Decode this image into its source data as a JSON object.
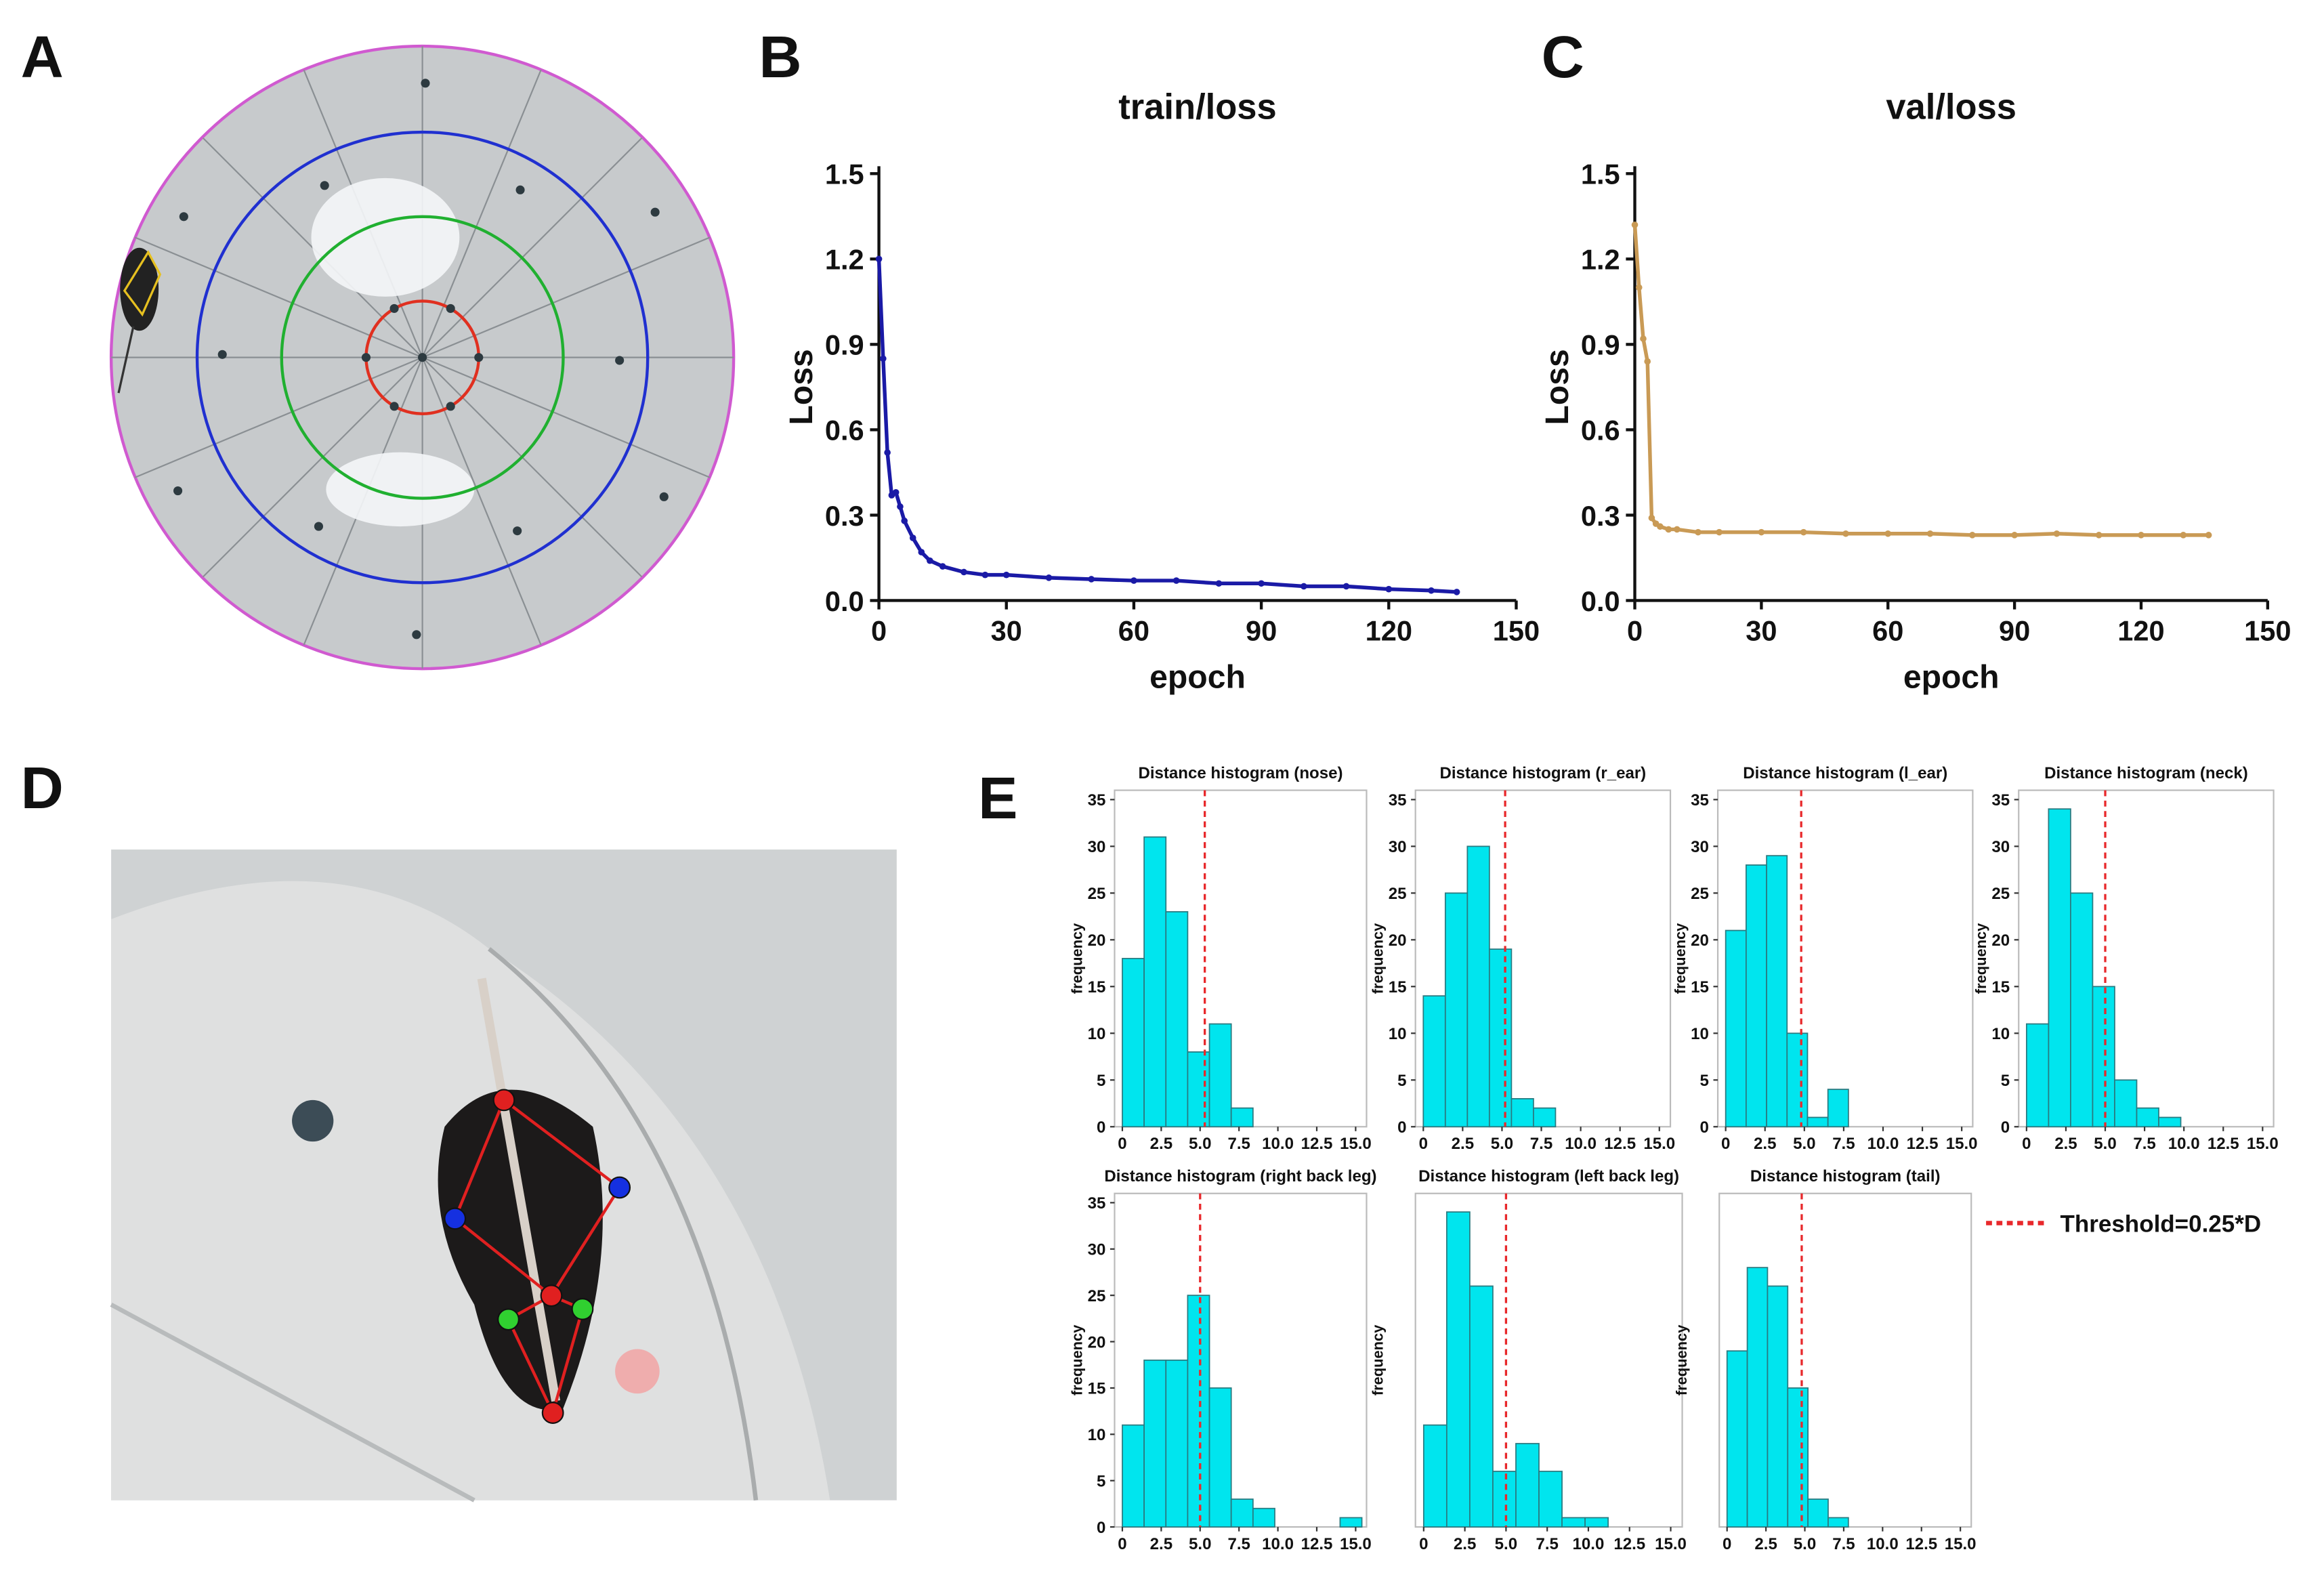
{
  "panel_labels": [
    "A",
    "B",
    "C",
    "D",
    "E"
  ],
  "legend": {
    "label": "Threshold=0.25*D",
    "color": "#e8282b"
  },
  "chart_data": [
    {
      "type": "line",
      "title": "train/loss",
      "xlabel": "epoch",
      "ylabel": "Loss",
      "color": "#1a1aa6",
      "x": [
        0,
        1,
        2,
        3,
        4,
        5,
        6,
        8,
        10,
        12,
        15,
        20,
        25,
        30,
        40,
        50,
        60,
        70,
        80,
        90,
        100,
        110,
        120,
        130,
        136
      ],
      "values": [
        1.2,
        0.85,
        0.52,
        0.37,
        0.38,
        0.33,
        0.28,
        0.22,
        0.17,
        0.14,
        0.12,
        0.1,
        0.09,
        0.09,
        0.08,
        0.075,
        0.07,
        0.07,
        0.06,
        0.06,
        0.05,
        0.05,
        0.04,
        0.035,
        0.03
      ],
      "xlim": [
        0,
        150
      ],
      "xticks": [
        0,
        30,
        60,
        90,
        120,
        150
      ],
      "ylim": [
        0,
        1.5
      ],
      "yticks": [
        {
          "value": 0,
          "label": "0.0"
        },
        0.3,
        0.6,
        0.9,
        1.2,
        1.5
      ]
    },
    {
      "type": "line",
      "title": "val/loss",
      "xlabel": "epoch",
      "ylabel": "Loss",
      "color": "#c99a55",
      "x": [
        0,
        1,
        2,
        3,
        4,
        5,
        6,
        8,
        10,
        15,
        20,
        30,
        40,
        50,
        60,
        70,
        80,
        90,
        100,
        110,
        120,
        130,
        136
      ],
      "values": [
        1.32,
        1.1,
        0.92,
        0.84,
        0.29,
        0.27,
        0.26,
        0.25,
        0.25,
        0.24,
        0.24,
        0.24,
        0.24,
        0.235,
        0.235,
        0.235,
        0.23,
        0.23,
        0.235,
        0.23,
        0.23,
        0.23,
        0.23
      ],
      "xlim": [
        0,
        150
      ],
      "xticks": [
        0,
        30,
        60,
        90,
        120,
        150
      ],
      "ylim": [
        0,
        1.5
      ],
      "yticks": [
        {
          "value": 0,
          "label": "0.0"
        },
        0.3,
        0.6,
        0.9,
        1.2,
        1.5
      ]
    },
    {
      "type": "histogram",
      "title": "Distance histogram (nose)",
      "ylabel": "frequency",
      "color": "#00e5ee",
      "bins": [
        0,
        1.4,
        2.8,
        4.2,
        5.6,
        7.0,
        8.4
      ],
      "counts": [
        18,
        31,
        23,
        8,
        11,
        2
      ],
      "threshold": 5.3,
      "xlim": [
        -0.5,
        15.7
      ],
      "xticks": [
        0,
        2.5,
        {
          "value": 5,
          "label": "5.0"
        },
        7.5,
        {
          "value": 10,
          "label": "10.0"
        },
        12.5,
        {
          "value": 15,
          "label": "15.0"
        }
      ],
      "ylim": [
        0,
        36
      ],
      "yticks": [
        0,
        5,
        10,
        15,
        20,
        25,
        30,
        35
      ]
    },
    {
      "type": "histogram",
      "title": "Distance histogram (r_ear)",
      "ylabel": "frequency",
      "color": "#00e5ee",
      "bins": [
        0,
        1.4,
        2.8,
        4.2,
        5.6,
        7.0,
        8.4
      ],
      "counts": [
        14,
        25,
        30,
        19,
        3,
        2
      ],
      "threshold": 5.2,
      "xlim": [
        -0.5,
        15.7
      ],
      "xticks": [
        0,
        2.5,
        {
          "value": 5,
          "label": "5.0"
        },
        7.5,
        {
          "value": 10,
          "label": "10.0"
        },
        12.5,
        {
          "value": 15,
          "label": "15.0"
        }
      ],
      "ylim": [
        0,
        36
      ],
      "yticks": [
        0,
        5,
        10,
        15,
        20,
        25,
        30,
        35
      ]
    },
    {
      "type": "histogram",
      "title": "Distance histogram (l_ear)",
      "ylabel": "frequency",
      "color": "#00e5ee",
      "bins": [
        0,
        1.3,
        2.6,
        3.9,
        5.2,
        6.5,
        7.8
      ],
      "counts": [
        21,
        28,
        29,
        10,
        1,
        4
      ],
      "threshold": 4.8,
      "xlim": [
        -0.5,
        15.7
      ],
      "xticks": [
        0,
        2.5,
        {
          "value": 5,
          "label": "5.0"
        },
        7.5,
        {
          "value": 10,
          "label": "10.0"
        },
        12.5,
        {
          "value": 15,
          "label": "15.0"
        }
      ],
      "ylim": [
        0,
        36
      ],
      "yticks": [
        0,
        5,
        10,
        15,
        20,
        25,
        30,
        35
      ]
    },
    {
      "type": "histogram",
      "title": "Distance histogram (neck)",
      "ylabel": "frequency",
      "color": "#00e5ee",
      "bins": [
        0,
        1.4,
        2.8,
        4.2,
        5.6,
        7.0,
        8.4,
        9.8
      ],
      "counts": [
        11,
        34,
        25,
        15,
        5,
        2,
        1
      ],
      "threshold": 5.0,
      "xlim": [
        -0.5,
        15.7
      ],
      "xticks": [
        0,
        2.5,
        {
          "value": 5,
          "label": "5.0"
        },
        7.5,
        {
          "value": 10,
          "label": "10.0"
        },
        12.5,
        {
          "value": 15,
          "label": "15.0"
        }
      ],
      "ylim": [
        0,
        36
      ],
      "yticks": [
        0,
        5,
        10,
        15,
        20,
        25,
        30,
        35
      ]
    },
    {
      "type": "histogram",
      "title": "Distance histogram (right back leg)",
      "ylabel": "frequency",
      "color": "#00e5ee",
      "bins": [
        0,
        1.4,
        2.8,
        4.2,
        5.6,
        7.0,
        8.4,
        9.8,
        11.2,
        12.6,
        14.0,
        15.4
      ],
      "counts": [
        11,
        18,
        18,
        25,
        15,
        3,
        2,
        0,
        0,
        0,
        1
      ],
      "threshold": 5.0,
      "xlim": [
        -0.5,
        15.7
      ],
      "xticks": [
        0,
        2.5,
        {
          "value": 5,
          "label": "5.0"
        },
        7.5,
        {
          "value": 10,
          "label": "10.0"
        },
        12.5,
        {
          "value": 15,
          "label": "15.0"
        }
      ],
      "ylim": [
        0,
        36
      ],
      "yticks": [
        0,
        5,
        10,
        15,
        20,
        25,
        30,
        35
      ]
    },
    {
      "type": "histogram",
      "title": "Distance histogram (left back leg)",
      "ylabel": "frequency",
      "color": "#00e5ee",
      "bins": [
        0,
        1.4,
        2.8,
        4.2,
        5.6,
        7.0,
        8.4,
        9.8,
        11.2
      ],
      "counts": [
        11,
        34,
        26,
        6,
        9,
        6,
        1,
        1
      ],
      "threshold": 5.0,
      "xlim": [
        -0.5,
        15.7
      ],
      "xticks": [
        0,
        2.5,
        {
          "value": 5,
          "label": "5.0"
        },
        7.5,
        {
          "value": 10,
          "label": "10.0"
        },
        12.5,
        {
          "value": 15,
          "label": "15.0"
        }
      ],
      "ylim": [
        0,
        36
      ]
    },
    {
      "type": "histogram",
      "title": "Distance histogram (tail)",
      "ylabel": "frequency",
      "color": "#00e5ee",
      "bins": [
        0,
        1.3,
        2.6,
        3.9,
        5.2,
        6.5,
        7.8
      ],
      "counts": [
        19,
        28,
        26,
        15,
        3,
        1
      ],
      "threshold": 4.8,
      "xlim": [
        -0.5,
        15.7
      ],
      "xticks": [
        0,
        2.5,
        {
          "value": 5,
          "label": "5.0"
        },
        7.5,
        {
          "value": 10,
          "label": "10.0"
        },
        12.5,
        {
          "value": 15,
          "label": "15.0"
        }
      ],
      "ylim": [
        0,
        36
      ]
    }
  ]
}
